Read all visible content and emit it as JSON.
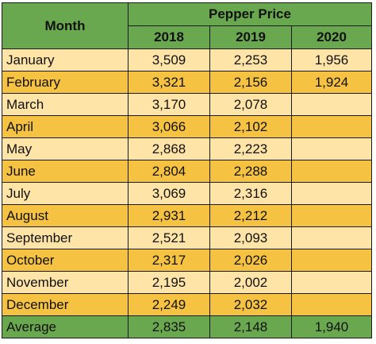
{
  "table": {
    "month_header": "Month",
    "group_header": "Pepper Price",
    "years": [
      "2018",
      "2019",
      "2020"
    ],
    "rows": [
      {
        "month": "January",
        "v2018": "3,509",
        "v2019": "2,253",
        "v2020": "1,956"
      },
      {
        "month": "February",
        "v2018": "3,321",
        "v2019": "2,156",
        "v2020": "1,924"
      },
      {
        "month": "March",
        "v2018": "3,170",
        "v2019": "2,078",
        "v2020": ""
      },
      {
        "month": "April",
        "v2018": "3,066",
        "v2019": "2,102",
        "v2020": ""
      },
      {
        "month": "May",
        "v2018": "2,868",
        "v2019": "2,223",
        "v2020": ""
      },
      {
        "month": "June",
        "v2018": "2,804",
        "v2019": "2,288",
        "v2020": ""
      },
      {
        "month": "July",
        "v2018": "3,069",
        "v2019": "2,316",
        "v2020": ""
      },
      {
        "month": "August",
        "v2018": "2,931",
        "v2019": "2,212",
        "v2020": ""
      },
      {
        "month": "September",
        "v2018": "2,521",
        "v2019": "2,093",
        "v2020": ""
      },
      {
        "month": "October",
        "v2018": "2,317",
        "v2019": "2,026",
        "v2020": ""
      },
      {
        "month": "November",
        "v2018": "2,195",
        "v2019": "2,002",
        "v2020": ""
      },
      {
        "month": "December",
        "v2018": "2,249",
        "v2019": "2,032",
        "v2020": ""
      }
    ],
    "average": {
      "label": "Average",
      "v2018": "2,835",
      "v2019": "2,148",
      "v2020": "1,940"
    }
  },
  "colors": {
    "header_green": "#6aa84f",
    "row_light": "#ffe4a8",
    "row_dark": "#f5c242",
    "border": "#1a1a1a"
  },
  "chart_data": {
    "type": "table",
    "columns": [
      "Month",
      "2018",
      "2019",
      "2020"
    ],
    "group_header": "Pepper Price",
    "rows": [
      [
        "January",
        3509,
        2253,
        1956
      ],
      [
        "February",
        3321,
        2156,
        1924
      ],
      [
        "March",
        3170,
        2078,
        null
      ],
      [
        "April",
        3066,
        2102,
        null
      ],
      [
        "May",
        2868,
        2223,
        null
      ],
      [
        "June",
        2804,
        2288,
        null
      ],
      [
        "July",
        3069,
        2316,
        null
      ],
      [
        "August",
        2931,
        2212,
        null
      ],
      [
        "September",
        2521,
        2093,
        null
      ],
      [
        "October",
        2317,
        2026,
        null
      ],
      [
        "November",
        2195,
        2002,
        null
      ],
      [
        "December",
        2249,
        2032,
        null
      ]
    ],
    "summary_row": [
      "Average",
      2835,
      2148,
      1940
    ]
  }
}
